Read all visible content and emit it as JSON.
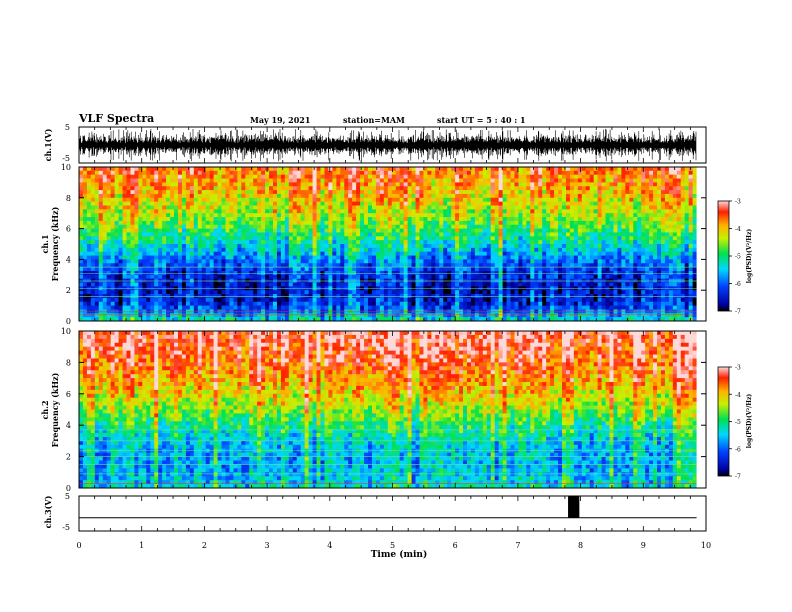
{
  "header": {
    "title": "VLF Spectra",
    "date": "May 19, 2021",
    "station": "station=MAM",
    "start": "start  UT  =   5 : 40 : 1"
  },
  "chart_data": [
    {
      "type": "line",
      "panel": "ch1-waveform",
      "ylabel": "ch.1(V)",
      "ylim": [
        -5,
        5
      ],
      "yticks": [
        "5",
        "-5"
      ],
      "description_values": {
        "baseline_v": 0,
        "amplitude_v": [
          -4.5,
          4.5
        ]
      }
    },
    {
      "type": "heatmap",
      "panel": "ch1-spectrogram",
      "ylabel_lines": [
        "ch.1",
        "Frequency (kHz)"
      ],
      "ylim": [
        0,
        10
      ],
      "yticks": [
        "0",
        "2",
        "4",
        "6",
        "8",
        "10"
      ],
      "colorbar": {
        "label": "log(PSD)(V²/Hz)",
        "range": [
          -7,
          -3
        ],
        "ticks": [
          "-3",
          "-4",
          "-5",
          "-6",
          "-7"
        ]
      },
      "mean_log_psd_profile": {
        "freq_khz": [
          0,
          0.5,
          1,
          2,
          3,
          4,
          5,
          6,
          7,
          8,
          9,
          10
        ],
        "log_psd": [
          -5.2,
          -5.8,
          -6.3,
          -6.5,
          -6.3,
          -5.9,
          -5.3,
          -4.8,
          -4.4,
          -4.1,
          -3.8,
          -3.6
        ]
      }
    },
    {
      "type": "heatmap",
      "panel": "ch2-spectrogram",
      "ylabel_lines": [
        "ch.2",
        "Frequency (kHz)"
      ],
      "ylim": [
        0,
        10
      ],
      "yticks": [
        "0",
        "2",
        "4",
        "6",
        "8",
        "10"
      ],
      "colorbar": {
        "label": "log(PSD)(V²/Hz)",
        "range": [
          -7,
          -3
        ],
        "ticks": [
          "-3",
          "-4",
          "-5",
          "-6",
          "-7"
        ]
      },
      "mean_log_psd_profile": {
        "freq_khz": [
          0,
          0.5,
          1,
          2,
          3,
          4,
          5,
          6,
          7,
          8,
          9,
          10
        ],
        "log_psd": [
          -5.3,
          -5.5,
          -5.6,
          -5.6,
          -5.4,
          -5.0,
          -4.5,
          -4.1,
          -3.8,
          -3.5,
          -3.3,
          -3.2
        ]
      }
    },
    {
      "type": "line",
      "panel": "ch3-signal",
      "ylabel": "ch.3(V)",
      "ylim": [
        -5,
        5
      ],
      "yticks": [
        "5",
        "-5"
      ],
      "baseline_v": -1.2,
      "pulse": {
        "x_start_min": 7.8,
        "x_end_min": 7.98,
        "top_v": 5
      }
    }
  ],
  "x_axis": {
    "label": "Time (min)",
    "range": [
      0,
      10
    ],
    "ticks": [
      "0",
      "1",
      "2",
      "3",
      "4",
      "5",
      "6",
      "7",
      "8",
      "9",
      "10"
    ],
    "data_end_min": 9.85
  },
  "colors": {
    "line": "#000000",
    "background": "#ffffff"
  }
}
